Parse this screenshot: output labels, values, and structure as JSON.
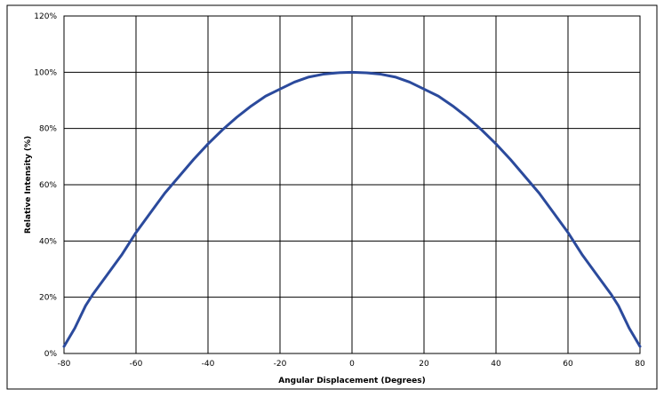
{
  "chart_data": {
    "type": "line",
    "title": "",
    "xlabel": "Angular Displacement (Degrees)",
    "ylabel": "Relative Intensity (%)",
    "xlim": [
      -80,
      80
    ],
    "ylim": [
      0,
      120
    ],
    "x_ticks": [
      -80,
      -60,
      -40,
      -20,
      0,
      20,
      40,
      60,
      80
    ],
    "x_tick_labels": [
      "-80",
      "-60",
      "-40",
      "-20",
      "0",
      "20",
      "40",
      "60",
      "80"
    ],
    "y_ticks": [
      0,
      20,
      40,
      60,
      80,
      100,
      120
    ],
    "y_tick_labels": [
      "0%",
      "20%",
      "40%",
      "60%",
      "80%",
      "100%",
      "120%"
    ],
    "grid": true,
    "legend": "none",
    "line_color": "#2b4a9c",
    "series": [
      {
        "x": [
          -80,
          -77,
          -74,
          -72,
          -68,
          -64,
          -60,
          -56,
          -52,
          -48,
          -44,
          -40,
          -36,
          -32,
          -28,
          -24,
          -20,
          -16,
          -12,
          -8,
          -4,
          0,
          4,
          8,
          12,
          16,
          20,
          24,
          28,
          32,
          36,
          40,
          44,
          48,
          52,
          56,
          60,
          64,
          68,
          72,
          74,
          77,
          80
        ],
        "y": [
          2.5,
          9,
          17,
          21,
          28,
          35,
          43,
          50,
          57,
          63,
          69,
          74.5,
          79.5,
          84,
          88,
          91.5,
          94,
          96.5,
          98.3,
          99.3,
          99.8,
          100,
          99.8,
          99.3,
          98.3,
          96.5,
          94,
          91.5,
          88,
          84,
          79.5,
          74.5,
          69,
          63,
          57,
          50,
          43,
          35,
          28,
          21,
          17,
          9,
          2.5
        ]
      }
    ]
  }
}
